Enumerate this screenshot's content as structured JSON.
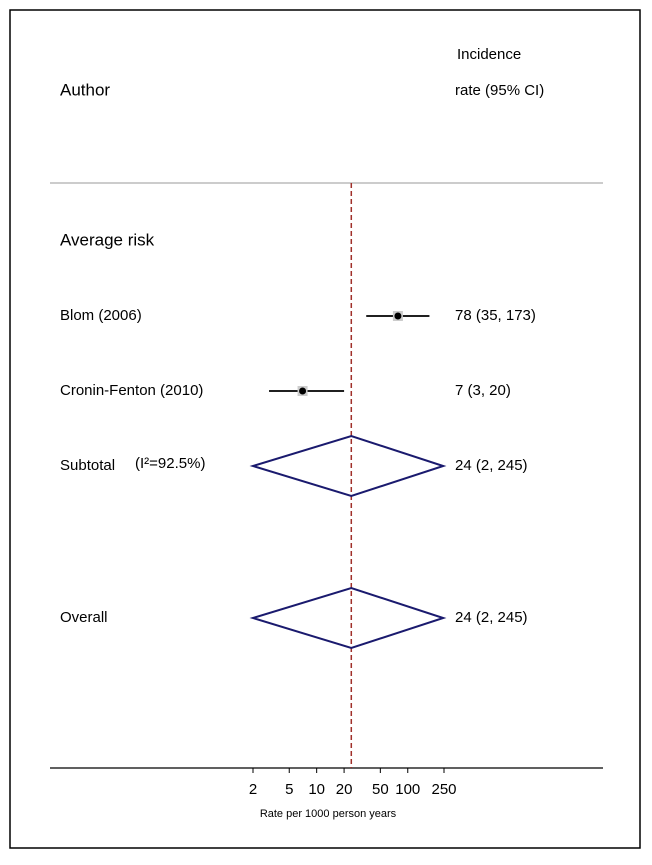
{
  "chart_data": {
    "type": "forest",
    "column_headers": {
      "author": "Author",
      "estimate_top": "Incidence",
      "estimate_bottom": "rate (95% CI)"
    },
    "xlabel": "Rate per 1000 person years",
    "log_scale": true,
    "xlim": [
      2,
      250
    ],
    "xticks": [
      2,
      5,
      10,
      20,
      50,
      100,
      250
    ],
    "groups": [
      {
        "name": "Average risk",
        "studies": [
          {
            "label": "Blom (2006)",
            "estimate": 78,
            "lower": 35,
            "upper": 173,
            "estimate_label": "78 (35, 173)"
          },
          {
            "label": "Cronin-Fenton (2010)",
            "estimate": 7,
            "lower": 3,
            "upper": 20,
            "estimate_label": "7 (3, 20)"
          }
        ],
        "subtotal": {
          "label": "Subtotal",
          "heterogeneity": "(I²=92.5%)",
          "estimate": 24,
          "lower": 2,
          "upper": 245,
          "estimate_label": "24 (2, 245)"
        }
      }
    ],
    "overall": {
      "label": "Overall",
      "estimate": 24,
      "lower": 2,
      "upper": 245,
      "estimate_label": "24 (2, 245)"
    },
    "diamond_color": "#1a1a6e",
    "reference_line_color": "#a0302a"
  }
}
